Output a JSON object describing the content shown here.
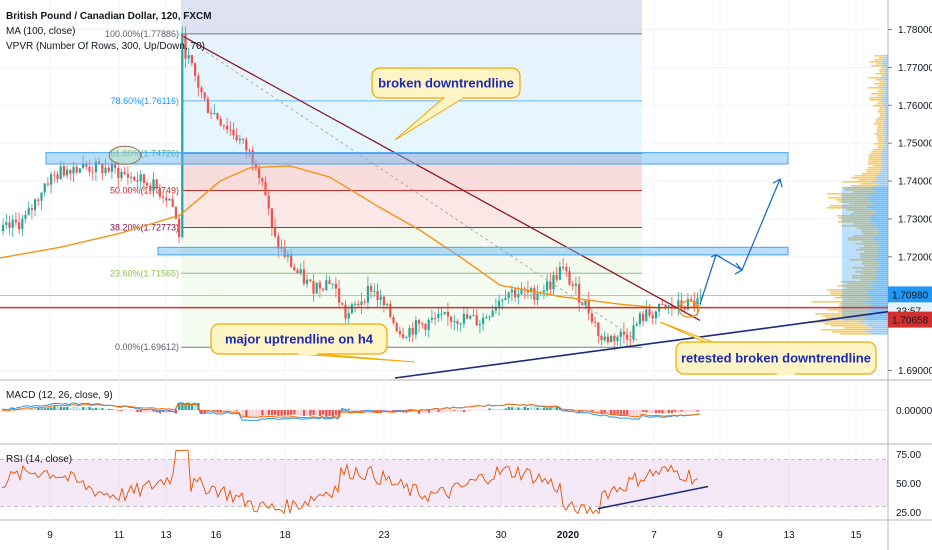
{
  "header": {
    "title": "British Pound / Canadian Dollar, 120, FXCM",
    "indicator_ma": "MA (100, close)",
    "indicator_vpvr": "VPVR (Number Of Rows, 300, Up/Down, 70)"
  },
  "chart_data": [
    {
      "type": "candlestick",
      "title": "British Pound / Canadian Dollar, 120, FXCM",
      "ylim": [
        1.688,
        1.787
      ],
      "y_ticks": [
        "1.78000",
        "1.77000",
        "1.76000",
        "1.75000",
        "1.74000",
        "1.73000",
        "1.72000",
        "1.69000"
      ],
      "x_ticks": [
        "9",
        "11",
        "13",
        "16",
        "18",
        "23",
        "30",
        "2020",
        "7",
        "9",
        "13",
        "15"
      ],
      "price_labels": {
        "last": "1.70980",
        "countdown": "33:57",
        "ma": "1.70658"
      },
      "fib_levels": [
        {
          "label": "100.00%(1.77886)",
          "value": 1.77886
        },
        {
          "label": "78.60%(1.76116)",
          "value": 1.76116
        },
        {
          "label": "61.80%(1.74726)",
          "value": 1.74726
        },
        {
          "label": "50.00%(1.73749)",
          "value": 1.73749
        },
        {
          "label": "38.20%(1.72773)",
          "value": 1.72773
        },
        {
          "label": "23.60%(1.71565)",
          "value": 1.71565
        },
        {
          "label": "0.00%(1.69612)",
          "value": 1.69612
        }
      ],
      "annotations": [
        "broken downtrendline",
        "major uptrendline on h4",
        "retested broken downtrendline"
      ],
      "colors": {
        "up": "#26a69a",
        "down": "#ef5350",
        "ma": "#f7931a",
        "trend": "#1a2a80",
        "resistance": "#d32f2f"
      }
    },
    {
      "type": "histogram",
      "title": "MACD (12, 26, close, 9)",
      "y_ticks": [
        "0.00000"
      ]
    },
    {
      "type": "line",
      "title": "RSI (14, close)",
      "ylim": [
        20,
        80
      ],
      "y_ticks": [
        "75.00",
        "50.00",
        "25.00"
      ]
    }
  ]
}
